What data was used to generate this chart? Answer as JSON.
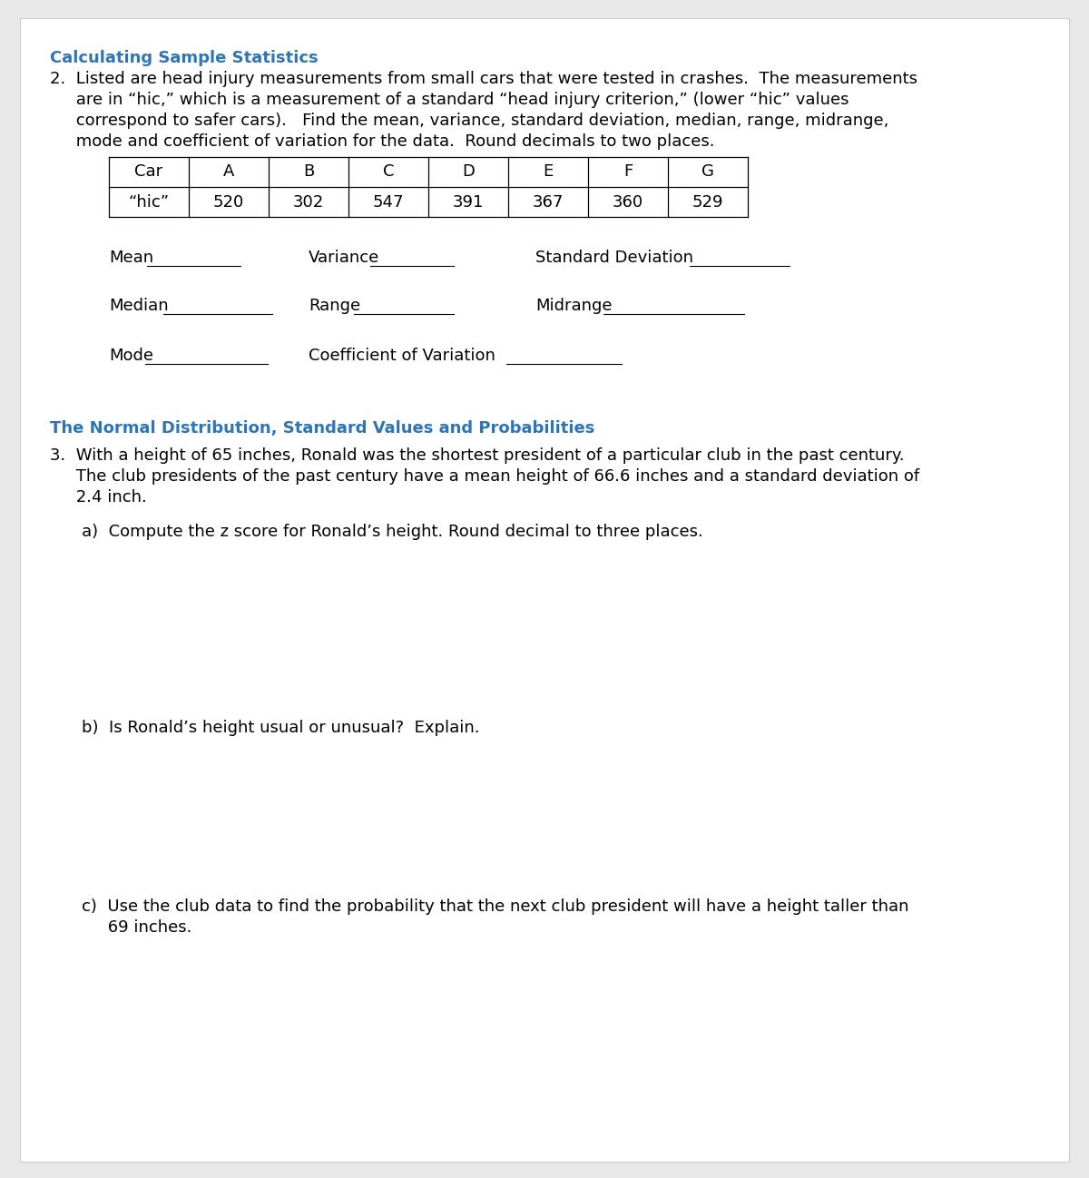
{
  "bg_color": "#e8e8e8",
  "page_bg": "#ffffff",
  "page_border": "#cccccc",
  "section1_title": "Calculating Sample Statistics",
  "section1_title_color": "#2E75B6",
  "q2_line1": "2.  Listed are head injury measurements from small cars that were tested in crashes.  The measurements",
  "q2_line2": "     are in “hic,” which is a measurement of a standard “head injury criterion,” (lower “hic” values",
  "q2_line3": "     correspond to safer cars).   Find the mean, variance, standard deviation, median, range, midrange,",
  "q2_line4": "     mode and coefficient of variation for the data.  Round decimals to two places.",
  "table_headers": [
    "Car",
    "A",
    "B",
    "C",
    "D",
    "E",
    "F",
    "G"
  ],
  "table_row": [
    "“hic”",
    "520",
    "302",
    "547",
    "391",
    "367",
    "360",
    "529"
  ],
  "section2_title": "The Normal Distribution, Standard Values and Probabilities",
  "section2_title_color": "#2E75B6",
  "q3_line1": "3.  With a height of 65 inches, Ronald was the shortest president of a particular club in the past century.",
  "q3_line2": "     The club presidents of the past century have a mean height of 66.6 inches and a standard deviation of",
  "q3_line3": "     2.4 inch.",
  "qa_text": "a)  Compute the z score for Ronald’s height. Round decimal to three places.",
  "qb_text": "b)  Is Ronald’s height usual or unusual?  Explain.",
  "qc_line1": "c)  Use the club data to find the probability that the next club president will have a height taller than",
  "qc_line2": "     69 inches.",
  "font_size_body": 13,
  "font_size_title": 13,
  "font_family": "DejaVu Sans"
}
